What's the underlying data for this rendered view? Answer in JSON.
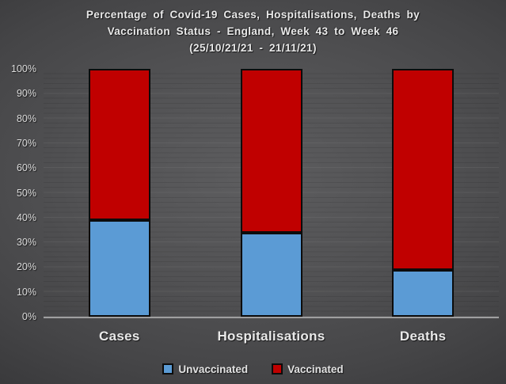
{
  "title": {
    "line1": "Percentage of Covid-19 Cases, Hospitalisations, Deaths by",
    "line2": "Vaccination Status - England, Week 43 to Week 46",
    "line3": "(25/10/21/21 - 21/11/21)"
  },
  "chart_data": {
    "type": "bar",
    "stacked": true,
    "title": "Percentage of Covid-19 Cases, Hospitalisations, Deaths by Vaccination Status - England, Week 43 to Week 46 (25/10/21/21 - 21/11/21)",
    "categories": [
      "Cases",
      "Hospitalisations",
      "Deaths"
    ],
    "series": [
      {
        "name": "Unvaccinated",
        "color": "#5B9BD5",
        "values": [
          39,
          34,
          19
        ]
      },
      {
        "name": "Vaccinated",
        "color": "#C00000",
        "values": [
          61,
          66,
          81
        ]
      }
    ],
    "xlabel": "",
    "ylabel": "",
    "ylim": [
      0,
      100
    ],
    "ytick_step": 10,
    "ytick_labels": [
      "0%",
      "10%",
      "20%",
      "30%",
      "40%",
      "50%",
      "60%",
      "70%",
      "80%",
      "90%",
      "100%"
    ],
    "grid": "horizontal minor every 2%, major every 10%",
    "legend_position": "bottom"
  },
  "colors": {
    "unvaccinated": "#5B9BD5",
    "vaccinated": "#C00000",
    "bar_border": "#0c0c0c",
    "axis_line": "#9f9fa0",
    "text": "#e9e9e9"
  }
}
